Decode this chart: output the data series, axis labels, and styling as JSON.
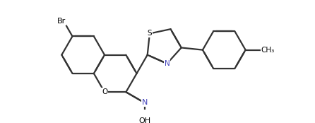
{
  "bg_color": "#ffffff",
  "bond_color": "#333333",
  "N_color": "#4444bb",
  "S_color": "#333333",
  "line_width": 1.6,
  "dbo": 0.055,
  "figsize": [
    4.46,
    1.74
  ],
  "dpi": 100,
  "xlim": [
    0,
    446
  ],
  "ylim": [
    0,
    174
  ]
}
